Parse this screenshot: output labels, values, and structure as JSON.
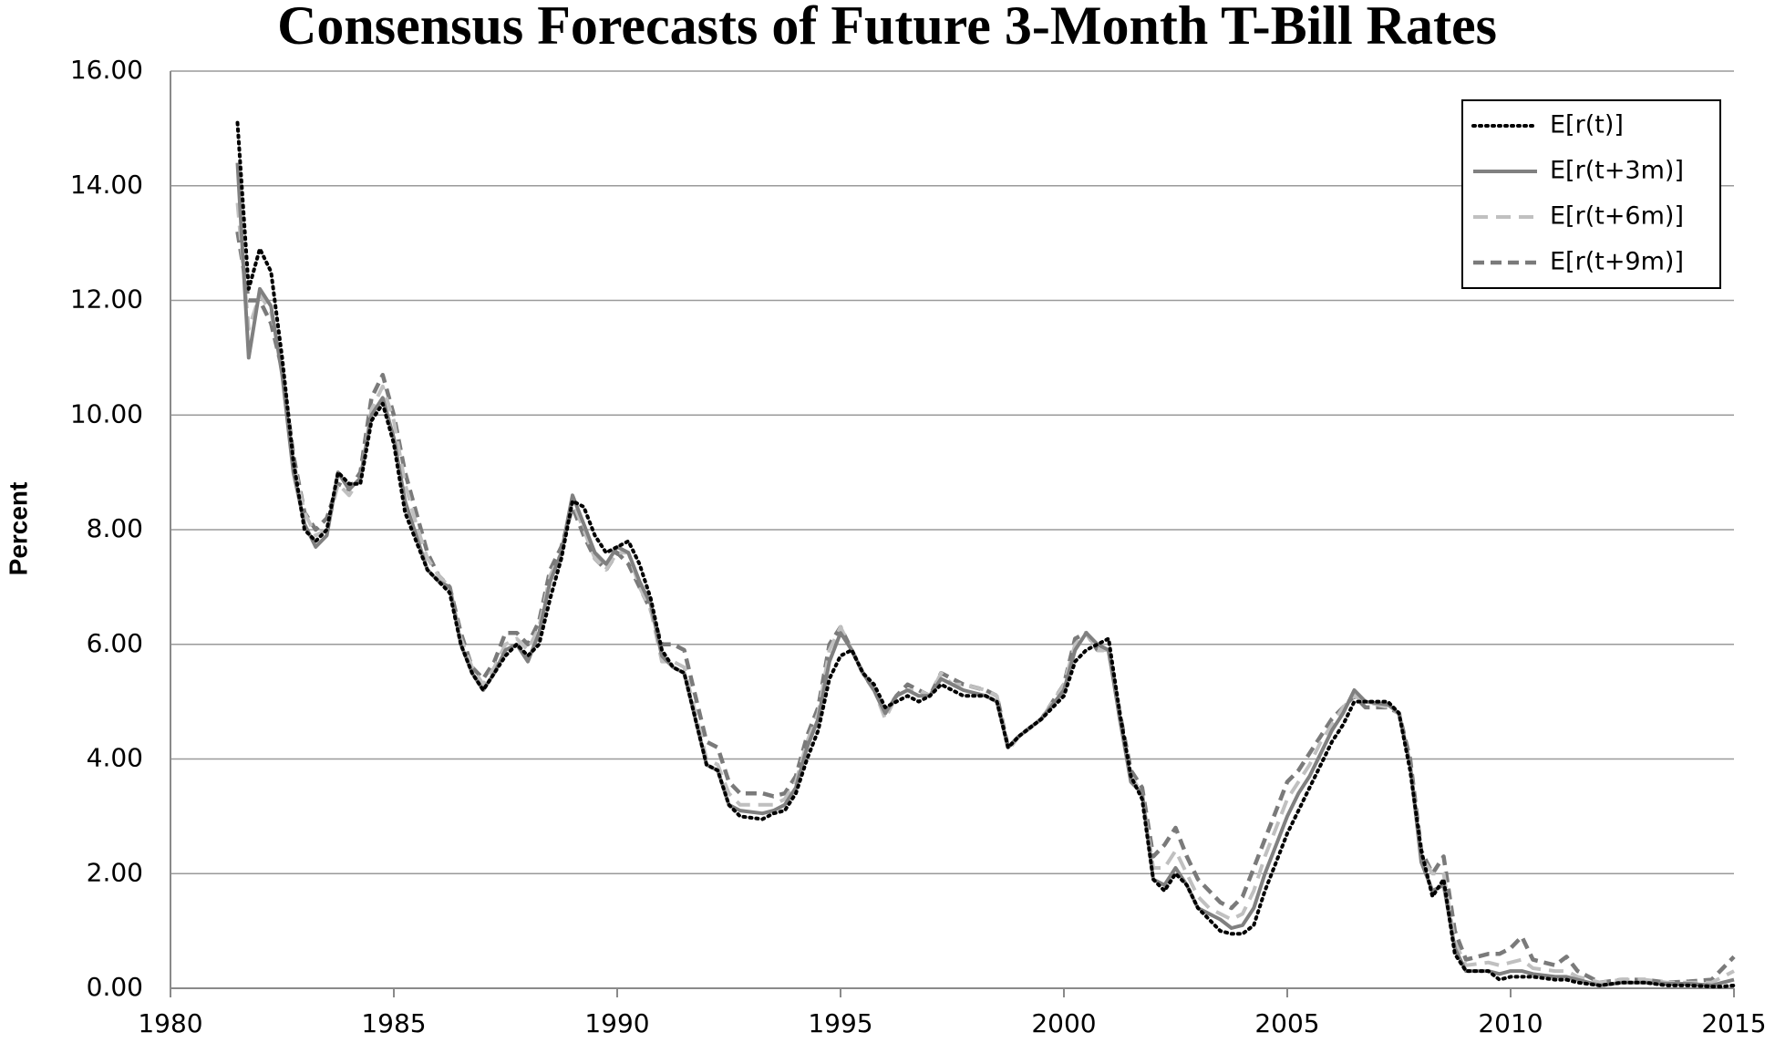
{
  "chart_data": {
    "type": "line",
    "title": "Consensus Forecasts of Future 3-Month T-Bill Rates",
    "y_label": "Percent",
    "x": [
      1981.5,
      1981.75,
      1982,
      1982.25,
      1982.5,
      1982.75,
      1983,
      1983.25,
      1983.5,
      1983.75,
      1984,
      1984.25,
      1984.5,
      1984.75,
      1985,
      1985.25,
      1985.5,
      1985.75,
      1986,
      1986.25,
      1986.5,
      1986.75,
      1987,
      1987.25,
      1987.5,
      1987.75,
      1988,
      1988.25,
      1988.5,
      1988.75,
      1989,
      1989.25,
      1989.5,
      1989.75,
      1990,
      1990.25,
      1990.5,
      1990.75,
      1991,
      1991.25,
      1991.5,
      1992,
      1992.25,
      1992.5,
      1992.75,
      1993.25,
      1993.5,
      1993.75,
      1994,
      1994.25,
      1994.5,
      1994.75,
      1995,
      1995.25,
      1995.5,
      1995.75,
      1996,
      1996.25,
      1996.5,
      1996.75,
      1997,
      1997.25,
      1997.5,
      1997.75,
      1998.25,
      1998.5,
      1998.75,
      1999,
      1999.5,
      2000,
      2000.25,
      2000.5,
      2000.75,
      2001,
      2001.25,
      2001.5,
      2001.75,
      2002,
      2002.25,
      2002.5,
      2002.75,
      2003,
      2003.25,
      2003.5,
      2003.75,
      2004,
      2004.25,
      2004.5,
      2004.75,
      2005,
      2005.25,
      2005.5,
      2005.75,
      2006,
      2006.25,
      2006.5,
      2006.75,
      2007.25,
      2007.5,
      2007.75,
      2008,
      2008.25,
      2008.5,
      2008.75,
      2009,
      2009.5,
      2009.75,
      2010,
      2010.25,
      2010.5,
      2011,
      2011.25,
      2011.5,
      2012,
      2012.5,
      2013,
      2013.5,
      2014,
      2014.5,
      2014.75,
      2015
    ],
    "series": [
      {
        "name": "E[r(t)]",
        "color": "#000000",
        "style": "dotted",
        "values": [
          15.1,
          12.2,
          12.9,
          12.5,
          11.0,
          9.2,
          8.0,
          7.8,
          8.0,
          9.0,
          8.8,
          8.8,
          9.9,
          10.2,
          9.5,
          8.3,
          7.8,
          7.3,
          7.1,
          6.9,
          6.0,
          5.5,
          5.2,
          5.5,
          5.8,
          6.0,
          5.8,
          6.0,
          6.8,
          7.5,
          8.5,
          8.4,
          7.9,
          7.6,
          7.7,
          7.8,
          7.4,
          6.8,
          5.9,
          5.6,
          5.5,
          3.9,
          3.8,
          3.2,
          3.0,
          2.95,
          3.05,
          3.1,
          3.4,
          4.0,
          4.5,
          5.4,
          5.8,
          5.9,
          5.5,
          5.3,
          4.9,
          5.0,
          5.1,
          5.0,
          5.1,
          5.3,
          5.2,
          5.1,
          5.1,
          5.0,
          4.2,
          4.4,
          4.7,
          5.1,
          5.7,
          5.9,
          6.0,
          6.1,
          4.8,
          3.7,
          3.3,
          1.9,
          1.7,
          2.0,
          1.8,
          1.4,
          1.2,
          1.0,
          0.95,
          0.95,
          1.1,
          1.7,
          2.2,
          2.7,
          3.1,
          3.5,
          3.9,
          4.3,
          4.6,
          5.0,
          5.0,
          5.0,
          4.8,
          3.8,
          2.4,
          1.6,
          1.9,
          0.6,
          0.3,
          0.3,
          0.15,
          0.2,
          0.2,
          0.2,
          0.15,
          0.15,
          0.1,
          0.05,
          0.1,
          0.1,
          0.05,
          0.05,
          0.03,
          0.03,
          0.05
        ]
      },
      {
        "name": "E[r(t+3m)]",
        "color": "#808080",
        "style": "solid",
        "values": [
          14.4,
          11.0,
          12.2,
          11.9,
          10.7,
          9.0,
          8.1,
          7.7,
          7.9,
          9.0,
          8.7,
          8.9,
          10.0,
          10.3,
          9.6,
          8.5,
          7.9,
          7.3,
          7.1,
          7.0,
          6.0,
          5.5,
          5.2,
          5.5,
          5.9,
          6.0,
          5.7,
          6.2,
          7.1,
          7.6,
          8.6,
          8.1,
          7.6,
          7.4,
          7.7,
          7.6,
          7.1,
          6.7,
          5.8,
          5.6,
          5.5,
          3.9,
          3.8,
          3.2,
          3.1,
          3.05,
          3.1,
          3.2,
          3.5,
          4.2,
          4.7,
          5.7,
          6.2,
          5.9,
          5.5,
          5.2,
          4.8,
          5.1,
          5.2,
          5.1,
          5.1,
          5.4,
          5.3,
          5.2,
          5.1,
          5.0,
          4.2,
          4.4,
          4.7,
          5.2,
          5.9,
          6.2,
          6.0,
          5.9,
          4.7,
          3.6,
          3.4,
          1.9,
          1.8,
          2.1,
          1.8,
          1.4,
          1.3,
          1.2,
          1.05,
          1.1,
          1.4,
          2.0,
          2.5,
          3.0,
          3.4,
          3.7,
          4.1,
          4.5,
          4.8,
          5.2,
          5.0,
          4.95,
          4.8,
          3.9,
          2.2,
          1.7,
          1.8,
          0.7,
          0.3,
          0.3,
          0.25,
          0.3,
          0.3,
          0.25,
          0.2,
          0.2,
          0.15,
          0.05,
          0.1,
          0.1,
          0.08,
          0.08,
          0.05,
          0.1,
          0.15
        ]
      },
      {
        "name": "E[r(t+6m)]",
        "color": "#c0c0c0",
        "style": "long-dash",
        "values": [
          13.7,
          11.5,
          12.1,
          11.8,
          10.8,
          9.2,
          8.3,
          7.9,
          8.0,
          8.8,
          8.6,
          8.9,
          10.1,
          10.5,
          9.9,
          8.8,
          8.1,
          7.5,
          7.2,
          7.0,
          6.1,
          5.6,
          5.3,
          5.6,
          6.0,
          6.1,
          5.9,
          6.3,
          7.2,
          7.6,
          8.5,
          8.0,
          7.5,
          7.3,
          7.6,
          7.6,
          7.0,
          6.6,
          5.7,
          5.7,
          5.6,
          4.0,
          3.9,
          3.4,
          3.2,
          3.2,
          3.2,
          3.3,
          3.6,
          4.3,
          4.8,
          5.9,
          6.3,
          5.9,
          5.5,
          5.2,
          4.7,
          5.1,
          5.2,
          5.2,
          5.1,
          5.5,
          5.3,
          5.3,
          5.2,
          5.1,
          4.15,
          4.4,
          4.7,
          5.3,
          6.0,
          6.2,
          5.9,
          5.9,
          4.7,
          3.7,
          3.4,
          2.1,
          2.1,
          2.4,
          2.0,
          1.6,
          1.4,
          1.3,
          1.2,
          1.3,
          1.7,
          2.3,
          2.8,
          3.3,
          3.6,
          3.9,
          4.3,
          4.6,
          4.9,
          5.1,
          5.0,
          4.9,
          4.8,
          3.9,
          2.3,
          2.0,
          2.0,
          0.8,
          0.4,
          0.45,
          0.4,
          0.45,
          0.5,
          0.35,
          0.3,
          0.3,
          0.2,
          0.1,
          0.15,
          0.15,
          0.1,
          0.1,
          0.1,
          0.2,
          0.3
        ]
      },
      {
        "name": "E[r(t+9m)]",
        "color": "#7a7a7a",
        "style": "dash",
        "values": [
          13.2,
          12.0,
          12.0,
          11.6,
          10.8,
          9.3,
          8.3,
          8.0,
          8.2,
          8.8,
          8.7,
          9.0,
          10.3,
          10.7,
          10.0,
          9.0,
          8.3,
          7.6,
          7.2,
          7.0,
          6.2,
          5.6,
          5.4,
          5.7,
          6.2,
          6.2,
          6.0,
          6.4,
          7.3,
          7.7,
          8.4,
          7.9,
          7.5,
          7.3,
          7.6,
          7.4,
          7.0,
          6.6,
          6.0,
          6.0,
          5.9,
          4.3,
          4.2,
          3.6,
          3.4,
          3.4,
          3.35,
          3.4,
          3.7,
          4.4,
          4.9,
          6.0,
          6.3,
          5.9,
          5.5,
          5.2,
          4.8,
          5.1,
          5.3,
          5.2,
          5.1,
          5.5,
          5.4,
          5.3,
          5.2,
          5.1,
          4.2,
          4.4,
          4.7,
          5.3,
          6.1,
          6.2,
          5.9,
          5.9,
          4.8,
          3.8,
          3.5,
          2.3,
          2.5,
          2.8,
          2.3,
          1.9,
          1.7,
          1.5,
          1.4,
          1.6,
          2.1,
          2.6,
          3.1,
          3.6,
          3.8,
          4.1,
          4.4,
          4.7,
          4.9,
          5.1,
          4.9,
          4.9,
          4.8,
          4.0,
          2.4,
          2.0,
          2.3,
          1.0,
          0.5,
          0.6,
          0.6,
          0.7,
          0.9,
          0.5,
          0.4,
          0.55,
          0.3,
          0.1,
          0.15,
          0.15,
          0.1,
          0.12,
          0.15,
          0.35,
          0.55
        ]
      }
    ],
    "xlim": [
      1980,
      2015
    ],
    "xticks": [
      1980,
      1985,
      1990,
      1995,
      2000,
      2005,
      2010,
      2015
    ],
    "ylim": [
      0,
      16
    ],
    "yticks": [
      {
        "value": 0,
        "label": "0.00"
      },
      {
        "value": 2,
        "label": "2.00"
      },
      {
        "value": 4,
        "label": "4.00"
      },
      {
        "value": 6,
        "label": "6.00"
      },
      {
        "value": 8,
        "label": "8.00"
      },
      {
        "value": 10,
        "label": "10.00"
      },
      {
        "value": 12,
        "label": "12.00"
      },
      {
        "value": 14,
        "label": "14.00"
      },
      {
        "value": 16,
        "label": "16.00"
      }
    ],
    "grid": true,
    "legend": "top-right"
  }
}
